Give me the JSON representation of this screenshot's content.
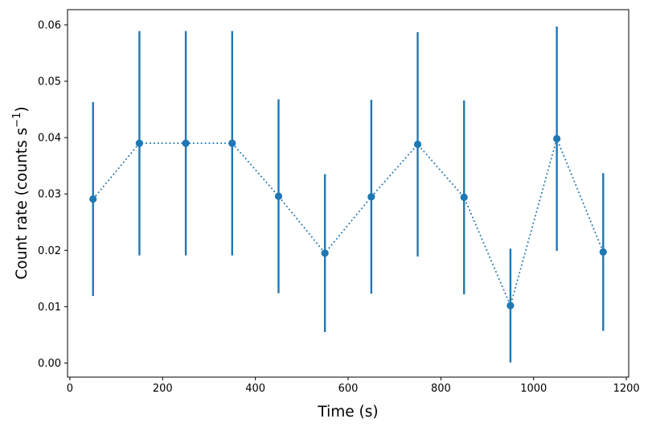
{
  "figure": {
    "title": "",
    "xlabel": "Time (s)",
    "ylabel": "Count rate (counts s⁻¹)",
    "ylabel_parts": [
      "Count rate (counts s",
      "−1",
      ")"
    ]
  },
  "chart_data": {
    "type": "line",
    "title": "",
    "xlabel": "Time (s)",
    "ylabel": "Count rate (counts s⁻¹)",
    "x": [
      50,
      150,
      250,
      350,
      450,
      550,
      650,
      750,
      850,
      950,
      1050,
      1150
    ],
    "y": [
      0.0291,
      0.039,
      0.039,
      0.039,
      0.0296,
      0.0195,
      0.0295,
      0.0388,
      0.0294,
      0.0102,
      0.0398,
      0.0197
    ],
    "yerr": [
      0.0172,
      0.0199,
      0.0199,
      0.0199,
      0.0172,
      0.014,
      0.0172,
      0.0199,
      0.0172,
      0.0101,
      0.0199,
      0.014
    ],
    "xlim": [
      -5,
      1205
    ],
    "ylim": [
      -0.0025,
      0.0627
    ],
    "xticks": [
      0,
      200,
      400,
      600,
      800,
      1000,
      1200
    ],
    "xtick_labels": [
      "0",
      "200",
      "400",
      "600",
      "800",
      "1000",
      "1200"
    ],
    "yticks": [
      0.0,
      0.01,
      0.02,
      0.03,
      0.04,
      0.05,
      0.06
    ],
    "ytick_labels": [
      "0.00",
      "0.01",
      "0.02",
      "0.03",
      "0.04",
      "0.05",
      "0.06"
    ],
    "style": {
      "series_color": "#1f77b4",
      "line_style": "dotted",
      "marker": "circle",
      "error_bars": "vertical-no-caps",
      "grid": false,
      "legend": null,
      "spine_color": "#000000",
      "background": "#ffffff",
      "text_color": "#000000"
    }
  }
}
